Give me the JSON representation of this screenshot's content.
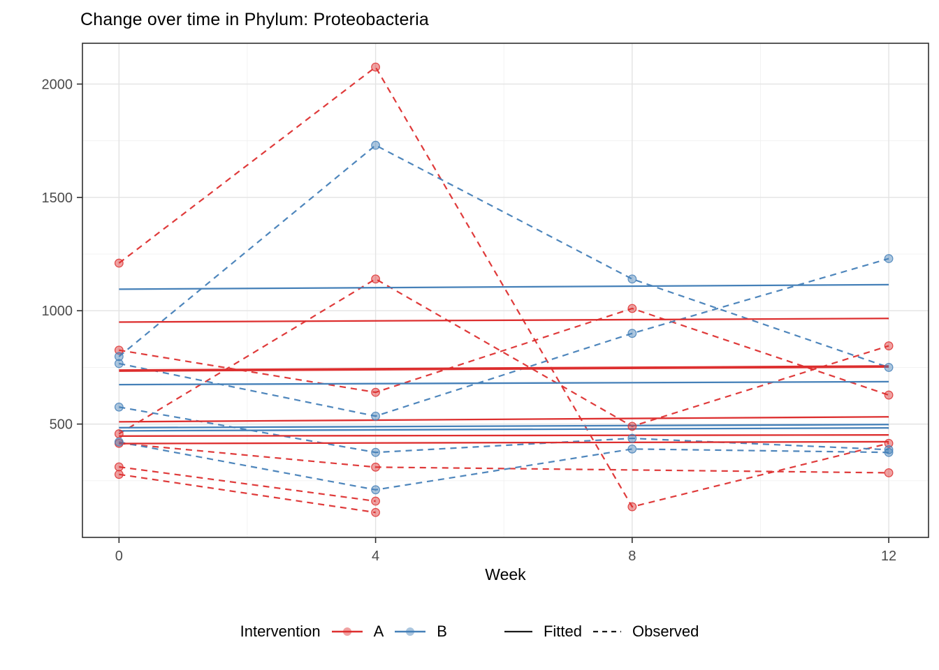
{
  "title": "Change over time in Phylum: Proteobacteria",
  "colors": {
    "A": "#dd2f2f",
    "B": "#4580b8",
    "legend_key": "#1a1a1a",
    "grid_major": "#e3e3e3",
    "grid_minor": "#f0f0f0",
    "panel_border": "#2f2f2f",
    "tick_label": "#4b4b4b"
  },
  "axes": {
    "x": {
      "label": "Week",
      "ticks": [
        0,
        4,
        8,
        12
      ],
      "minor": [
        2,
        6,
        10
      ],
      "domain": [
        -0.57,
        12.62
      ]
    },
    "y": {
      "label": "",
      "ticks": [
        500,
        1000,
        1500,
        2000
      ],
      "minor": [
        250,
        750,
        1250,
        1750
      ],
      "domain": [
        0,
        2180
      ]
    }
  },
  "legend": {
    "title": "Intervention",
    "groups": [
      {
        "label": "A",
        "color": "#dd2f2f"
      },
      {
        "label": "B",
        "color": "#4580b8"
      }
    ],
    "linetypes": [
      {
        "label": "Fitted",
        "style": "solid"
      },
      {
        "label": "Observed",
        "style": "dashed"
      }
    ]
  },
  "chart_data": {
    "type": "line",
    "title": "Change over time in Phylum: Proteobacteria",
    "xlabel": "Week",
    "ylabel": "",
    "xlim": [
      -0.57,
      12.62
    ],
    "ylim": [
      0,
      2180
    ],
    "grid": true,
    "legend_position": "bottom",
    "x_ticks": [
      0,
      4,
      8,
      12
    ],
    "y_ticks": [
      500,
      1000,
      1500,
      2000
    ],
    "series": [
      {
        "name": "A-fitted-1",
        "intervention": "A",
        "kind": "fitted",
        "x": [
          0,
          12
        ],
        "y": [
          950,
          966
        ]
      },
      {
        "name": "A-fitted-2",
        "intervention": "A",
        "kind": "fitted",
        "x": [
          0,
          12
        ],
        "y": [
          736,
          754
        ],
        "thick": true
      },
      {
        "name": "A-fitted-3",
        "intervention": "A",
        "kind": "fitted",
        "x": [
          0,
          12
        ],
        "y": [
          510,
          532
        ]
      },
      {
        "name": "A-fitted-4",
        "intervention": "A",
        "kind": "fitted",
        "x": [
          0,
          12
        ],
        "y": [
          447,
          452
        ]
      },
      {
        "name": "A-fitted-5",
        "intervention": "A",
        "kind": "fitted",
        "x": [
          0,
          12
        ],
        "y": [
          414,
          422
        ]
      },
      {
        "name": "B-fitted-1",
        "intervention": "B",
        "kind": "fitted",
        "x": [
          0,
          12
        ],
        "y": [
          1095,
          1115
        ]
      },
      {
        "name": "B-fitted-2",
        "intervention": "B",
        "kind": "fitted",
        "x": [
          0,
          12
        ],
        "y": [
          674,
          687
        ]
      },
      {
        "name": "B-fitted-3",
        "intervention": "B",
        "kind": "fitted",
        "x": [
          0,
          12
        ],
        "y": [
          484,
          498
        ]
      },
      {
        "name": "B-fitted-4",
        "intervention": "B",
        "kind": "fitted",
        "x": [
          0,
          12
        ],
        "y": [
          470,
          483
        ]
      },
      {
        "name": "A-observed-1",
        "intervention": "A",
        "kind": "observed",
        "x": [
          0,
          4,
          8,
          12
        ],
        "y": [
          1210,
          2075,
          135,
          415
        ]
      },
      {
        "name": "A-observed-2",
        "intervention": "A",
        "kind": "observed",
        "x": [
          0,
          4,
          8,
          12
        ],
        "y": [
          826,
          640,
          1010,
          628
        ]
      },
      {
        "name": "A-observed-3",
        "intervention": "A",
        "kind": "observed",
        "x": [
          0,
          4,
          8,
          12
        ],
        "y": [
          457,
          1140,
          490,
          845
        ]
      },
      {
        "name": "A-observed-4",
        "intervention": "A",
        "kind": "observed",
        "x": [
          0,
          4,
          12
        ],
        "y": [
          415,
          310,
          285
        ]
      },
      {
        "name": "A-observed-5",
        "intervention": "A",
        "kind": "observed",
        "x": [
          0,
          4
        ],
        "y": [
          311,
          160
        ]
      },
      {
        "name": "A-observed-6",
        "intervention": "A",
        "kind": "observed",
        "x": [
          0,
          4
        ],
        "y": [
          278,
          110
        ]
      },
      {
        "name": "B-observed-1",
        "intervention": "B",
        "kind": "observed",
        "x": [
          0,
          4,
          8,
          12
        ],
        "y": [
          798,
          1730,
          1140,
          750
        ]
      },
      {
        "name": "B-observed-2",
        "intervention": "B",
        "kind": "observed",
        "x": [
          0,
          4,
          8,
          12
        ],
        "y": [
          767,
          535,
          900,
          1230
        ]
      },
      {
        "name": "B-observed-3",
        "intervention": "B",
        "kind": "observed",
        "x": [
          0,
          4,
          8,
          12
        ],
        "y": [
          575,
          375,
          437,
          387
        ]
      },
      {
        "name": "B-observed-4",
        "intervention": "B",
        "kind": "observed",
        "x": [
          0,
          4,
          8,
          12
        ],
        "y": [
          421,
          210,
          390,
          375
        ]
      }
    ]
  }
}
